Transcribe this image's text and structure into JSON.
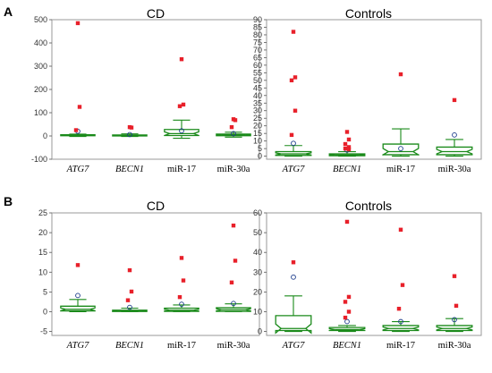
{
  "panel_letters": [
    "A",
    "B"
  ],
  "chart_data": [
    {
      "type": "box",
      "title": "CD",
      "categories": [
        "ATG7",
        "BECN1",
        "miR-17",
        "miR-30a"
      ],
      "italic_categories": [
        true,
        true,
        false,
        false
      ],
      "ylim": [
        -100,
        500
      ],
      "yticks": [
        -100,
        0,
        100,
        200,
        300,
        400,
        500
      ],
      "boxes": [
        {
          "whisker_low": -2,
          "q1": 1,
          "median": 3,
          "q3": 5,
          "whisker_high": 8,
          "mean": 20,
          "outliers": [
            485,
            125,
            25
          ]
        },
        {
          "whisker_low": -2,
          "q1": 0,
          "median": 2,
          "q3": 4,
          "whisker_high": 9,
          "mean": 6,
          "outliers": [
            38,
            36
          ]
        },
        {
          "whisker_low": -10,
          "q1": 2,
          "median": 10,
          "q3": 28,
          "whisker_high": 68,
          "mean": 22,
          "outliers": [
            330,
            135,
            128
          ]
        },
        {
          "whisker_low": -5,
          "q1": 1,
          "median": 4,
          "q3": 8,
          "whisker_high": 16,
          "mean": 10,
          "outliers": [
            72,
            68,
            38
          ]
        }
      ]
    },
    {
      "type": "box",
      "title": "Controls",
      "categories": [
        "ATG7",
        "BECN1",
        "miR-17",
        "miR-30a"
      ],
      "italic_categories": [
        true,
        true,
        false,
        false
      ],
      "ylim": [
        -2,
        90
      ],
      "yticks": [
        0,
        5,
        10,
        15,
        20,
        25,
        30,
        35,
        40,
        45,
        50,
        55,
        60,
        65,
        70,
        75,
        80,
        85,
        90
      ],
      "boxes": [
        {
          "whisker_low": 0,
          "q1": 0.5,
          "median": 1.5,
          "q3": 3,
          "whisker_high": 7,
          "mean": 8.5,
          "outliers": [
            82,
            52,
            50,
            30,
            14
          ]
        },
        {
          "whisker_low": 0,
          "q1": 0.3,
          "median": 0.8,
          "q3": 1.5,
          "whisker_high": 3,
          "mean": 4,
          "outliers": [
            16,
            11,
            8,
            6,
            5,
            4.5
          ]
        },
        {
          "whisker_low": 0,
          "q1": 1,
          "median": 3,
          "q3": 8,
          "whisker_high": 18,
          "mean": 5,
          "outliers": [
            54
          ]
        },
        {
          "whisker_low": 0,
          "q1": 1,
          "median": 3,
          "q3": 6,
          "whisker_high": 11,
          "mean": 14,
          "outliers": [
            37
          ]
        }
      ]
    },
    {
      "type": "box",
      "title": "CD",
      "categories": [
        "ATG7",
        "BECN1",
        "miR-17",
        "miR-30a"
      ],
      "italic_categories": [
        true,
        true,
        false,
        false
      ],
      "ylim": [
        -6,
        25
      ],
      "yticks": [
        -5,
        0,
        5,
        10,
        15,
        20,
        25
      ],
      "boxes": [
        {
          "whisker_low": 0,
          "q1": 0.2,
          "median": 0.6,
          "q3": 1.4,
          "whisker_high": 3.1,
          "mean": 4.1,
          "outliers": [
            11.8
          ]
        },
        {
          "whisker_low": 0,
          "q1": 0.05,
          "median": 0.15,
          "q3": 0.4,
          "whisker_high": 0.9,
          "mean": 1.1,
          "outliers": [
            10.5,
            5.1,
            2.9
          ]
        },
        {
          "whisker_low": 0,
          "q1": 0.1,
          "median": 0.4,
          "q3": 0.9,
          "whisker_high": 1.7,
          "mean": 1.9,
          "outliers": [
            13.6,
            7.9,
            3.7
          ]
        },
        {
          "whisker_low": 0,
          "q1": 0.1,
          "median": 0.5,
          "q3": 1.0,
          "whisker_high": 2.0,
          "mean": 2.1,
          "outliers": [
            21.8,
            12.9,
            7.4
          ]
        }
      ]
    },
    {
      "type": "box",
      "title": "Controls",
      "categories": [
        "ATG7",
        "BECN1",
        "miR-17",
        "miR-30a"
      ],
      "italic_categories": [
        true,
        true,
        false,
        false
      ],
      "ylim": [
        -2,
        60
      ],
      "yticks": [
        0,
        10,
        20,
        30,
        40,
        50,
        60
      ],
      "boxes": [
        {
          "whisker_low": 0,
          "q1": 0.5,
          "median": 1.5,
          "q3": 8,
          "whisker_high": 18,
          "mean": 27.5,
          "outliers": [
            35
          ]
        },
        {
          "whisker_low": 0,
          "q1": 0.5,
          "median": 1,
          "q3": 2,
          "whisker_high": 3,
          "mean": 5,
          "outliers": [
            55.5,
            17.5,
            15,
            10,
            7
          ]
        },
        {
          "whisker_low": 0,
          "q1": 0.5,
          "median": 1.5,
          "q3": 3,
          "whisker_high": 5,
          "mean": 5,
          "outliers": [
            51.5,
            23.5,
            11.5
          ]
        },
        {
          "whisker_low": 0,
          "q1": 0.5,
          "median": 1.5,
          "q3": 3,
          "whisker_high": 6.5,
          "mean": 6,
          "outliers": [
            28,
            13
          ]
        }
      ]
    }
  ],
  "colors": {
    "box_green": "#1a8a1a",
    "outlier_red": "#e8202a",
    "mean_circle": "#1a3a8a",
    "frame": "#9a9a9a"
  }
}
